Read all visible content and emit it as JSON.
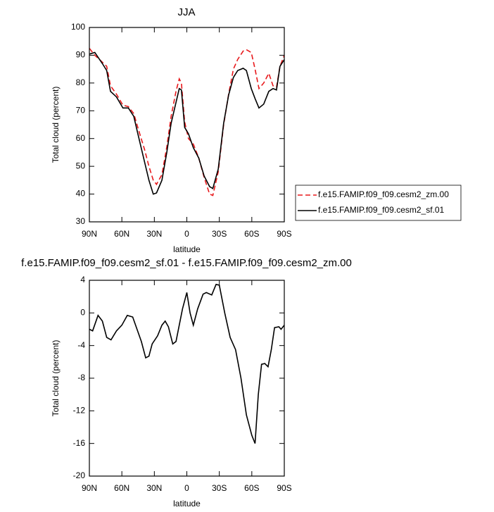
{
  "chart_data": [
    {
      "type": "line",
      "title": "JJA",
      "xlabel": "latitude",
      "ylabel": "Total cloud (percent)",
      "x": [
        90,
        85,
        78,
        74,
        70.5,
        65,
        59,
        54,
        49,
        44.5,
        39,
        35,
        31,
        28,
        23,
        18.5,
        14.5,
        10,
        7,
        5,
        2,
        -1.5,
        -6,
        -11,
        -16,
        -21,
        -24,
        -29,
        -34,
        -38.6,
        -43,
        -47,
        -52,
        -55,
        -59.5,
        -63,
        -66.6,
        -71,
        -75.7,
        -79.6,
        -82.8,
        -86,
        -90
      ],
      "series": [
        {
          "name": "f.e15.FAMIP.f09_f09.cesm2_zm.00",
          "color": "#e8191c",
          "line_style": "dashed",
          "values": [
            92.5,
            90,
            87.5,
            86,
            79,
            76,
            72,
            71.5,
            69,
            63,
            56,
            50,
            45,
            43.5,
            47,
            57,
            68,
            77,
            81.5,
            80,
            66,
            60,
            58,
            53,
            46,
            40,
            39.5,
            48,
            65,
            76,
            85,
            88.5,
            91.5,
            92,
            91,
            85,
            78,
            80,
            83.5,
            79,
            78.5,
            86,
            90
          ]
        },
        {
          "name": "f.e15.FAMIP.f09_f09.cesm2_sf.01",
          "color": "#000000",
          "line_style": "solid",
          "values": [
            90.4,
            91,
            87,
            84.5,
            77,
            75,
            71,
            71,
            68,
            60.5,
            51.5,
            45,
            40,
            40.4,
            45,
            55,
            65.5,
            73,
            78,
            77.5,
            64,
            61.7,
            56.7,
            53,
            46.5,
            42.7,
            42,
            49,
            65.5,
            75.7,
            82,
            84.5,
            85.3,
            84.5,
            78,
            74.4,
            71,
            72.4,
            77,
            78,
            77.5,
            86,
            88.4
          ]
        }
      ],
      "xlim": [
        90,
        -90
      ],
      "xticks": [
        {
          "value": 90,
          "label": "90N"
        },
        {
          "value": 60,
          "label": "60N"
        },
        {
          "value": 30,
          "label": "30N"
        },
        0,
        {
          "value": -30,
          "label": "30S"
        },
        {
          "value": -60,
          "label": "60S"
        },
        {
          "value": -90,
          "label": "90S"
        }
      ],
      "ylim": [
        30,
        100
      ],
      "yticks": [
        30,
        40,
        50,
        60,
        70,
        80,
        90,
        100
      ],
      "legend": "right"
    },
    {
      "type": "line",
      "title": "f.e15.FAMIP.f09_f09.cesm2_sf.01 - f.e15.FAMIP.f09_f09.cesm2_zm.00",
      "xlabel": "latitude",
      "ylabel": "Total cloud (percent)",
      "x": [
        90,
        87,
        82,
        78,
        74,
        70,
        65,
        60,
        55,
        50,
        46,
        42,
        38,
        35,
        32,
        27,
        23,
        20,
        17,
        13,
        10,
        7,
        4,
        0,
        -3,
        -6,
        -10,
        -15,
        -18,
        -23,
        -27,
        -30,
        -35,
        -40,
        -45,
        -50,
        -55,
        -60,
        -63,
        -66,
        -69,
        -72,
        -75,
        -78,
        -81,
        -85,
        -87,
        -90
      ],
      "series": [
        {
          "color": "#000000",
          "line_style": "solid",
          "values": [
            -2,
            -2.2,
            -0.3,
            -1,
            -3,
            -3.3,
            -2.2,
            -1.5,
            -0.3,
            -0.5,
            -2,
            -3.5,
            -5.5,
            -5.3,
            -3.8,
            -2.8,
            -1.5,
            -1,
            -1.7,
            -3.8,
            -3.5,
            -1.5,
            0.5,
            2.5,
            0,
            -1.5,
            0.5,
            2.3,
            2.5,
            2.2,
            3.5,
            3.4,
            0,
            -3,
            -4.5,
            -8,
            -12.5,
            -15,
            -16,
            -10,
            -6.3,
            -6.2,
            -6.6,
            -4.5,
            -1.8,
            -1.7,
            -2,
            -1.5
          ]
        }
      ],
      "xlim": [
        90,
        -90
      ],
      "xticks": [
        {
          "value": 90,
          "label": "90N"
        },
        {
          "value": 60,
          "label": "60N"
        },
        {
          "value": 30,
          "label": "30N"
        },
        0,
        {
          "value": -30,
          "label": "30S"
        },
        {
          "value": -60,
          "label": "60S"
        },
        {
          "value": -90,
          "label": "90S"
        }
      ],
      "ylim": [
        -20,
        4
      ],
      "yticks": [
        -20,
        -16,
        -12,
        -8,
        -4,
        0,
        4
      ]
    }
  ]
}
